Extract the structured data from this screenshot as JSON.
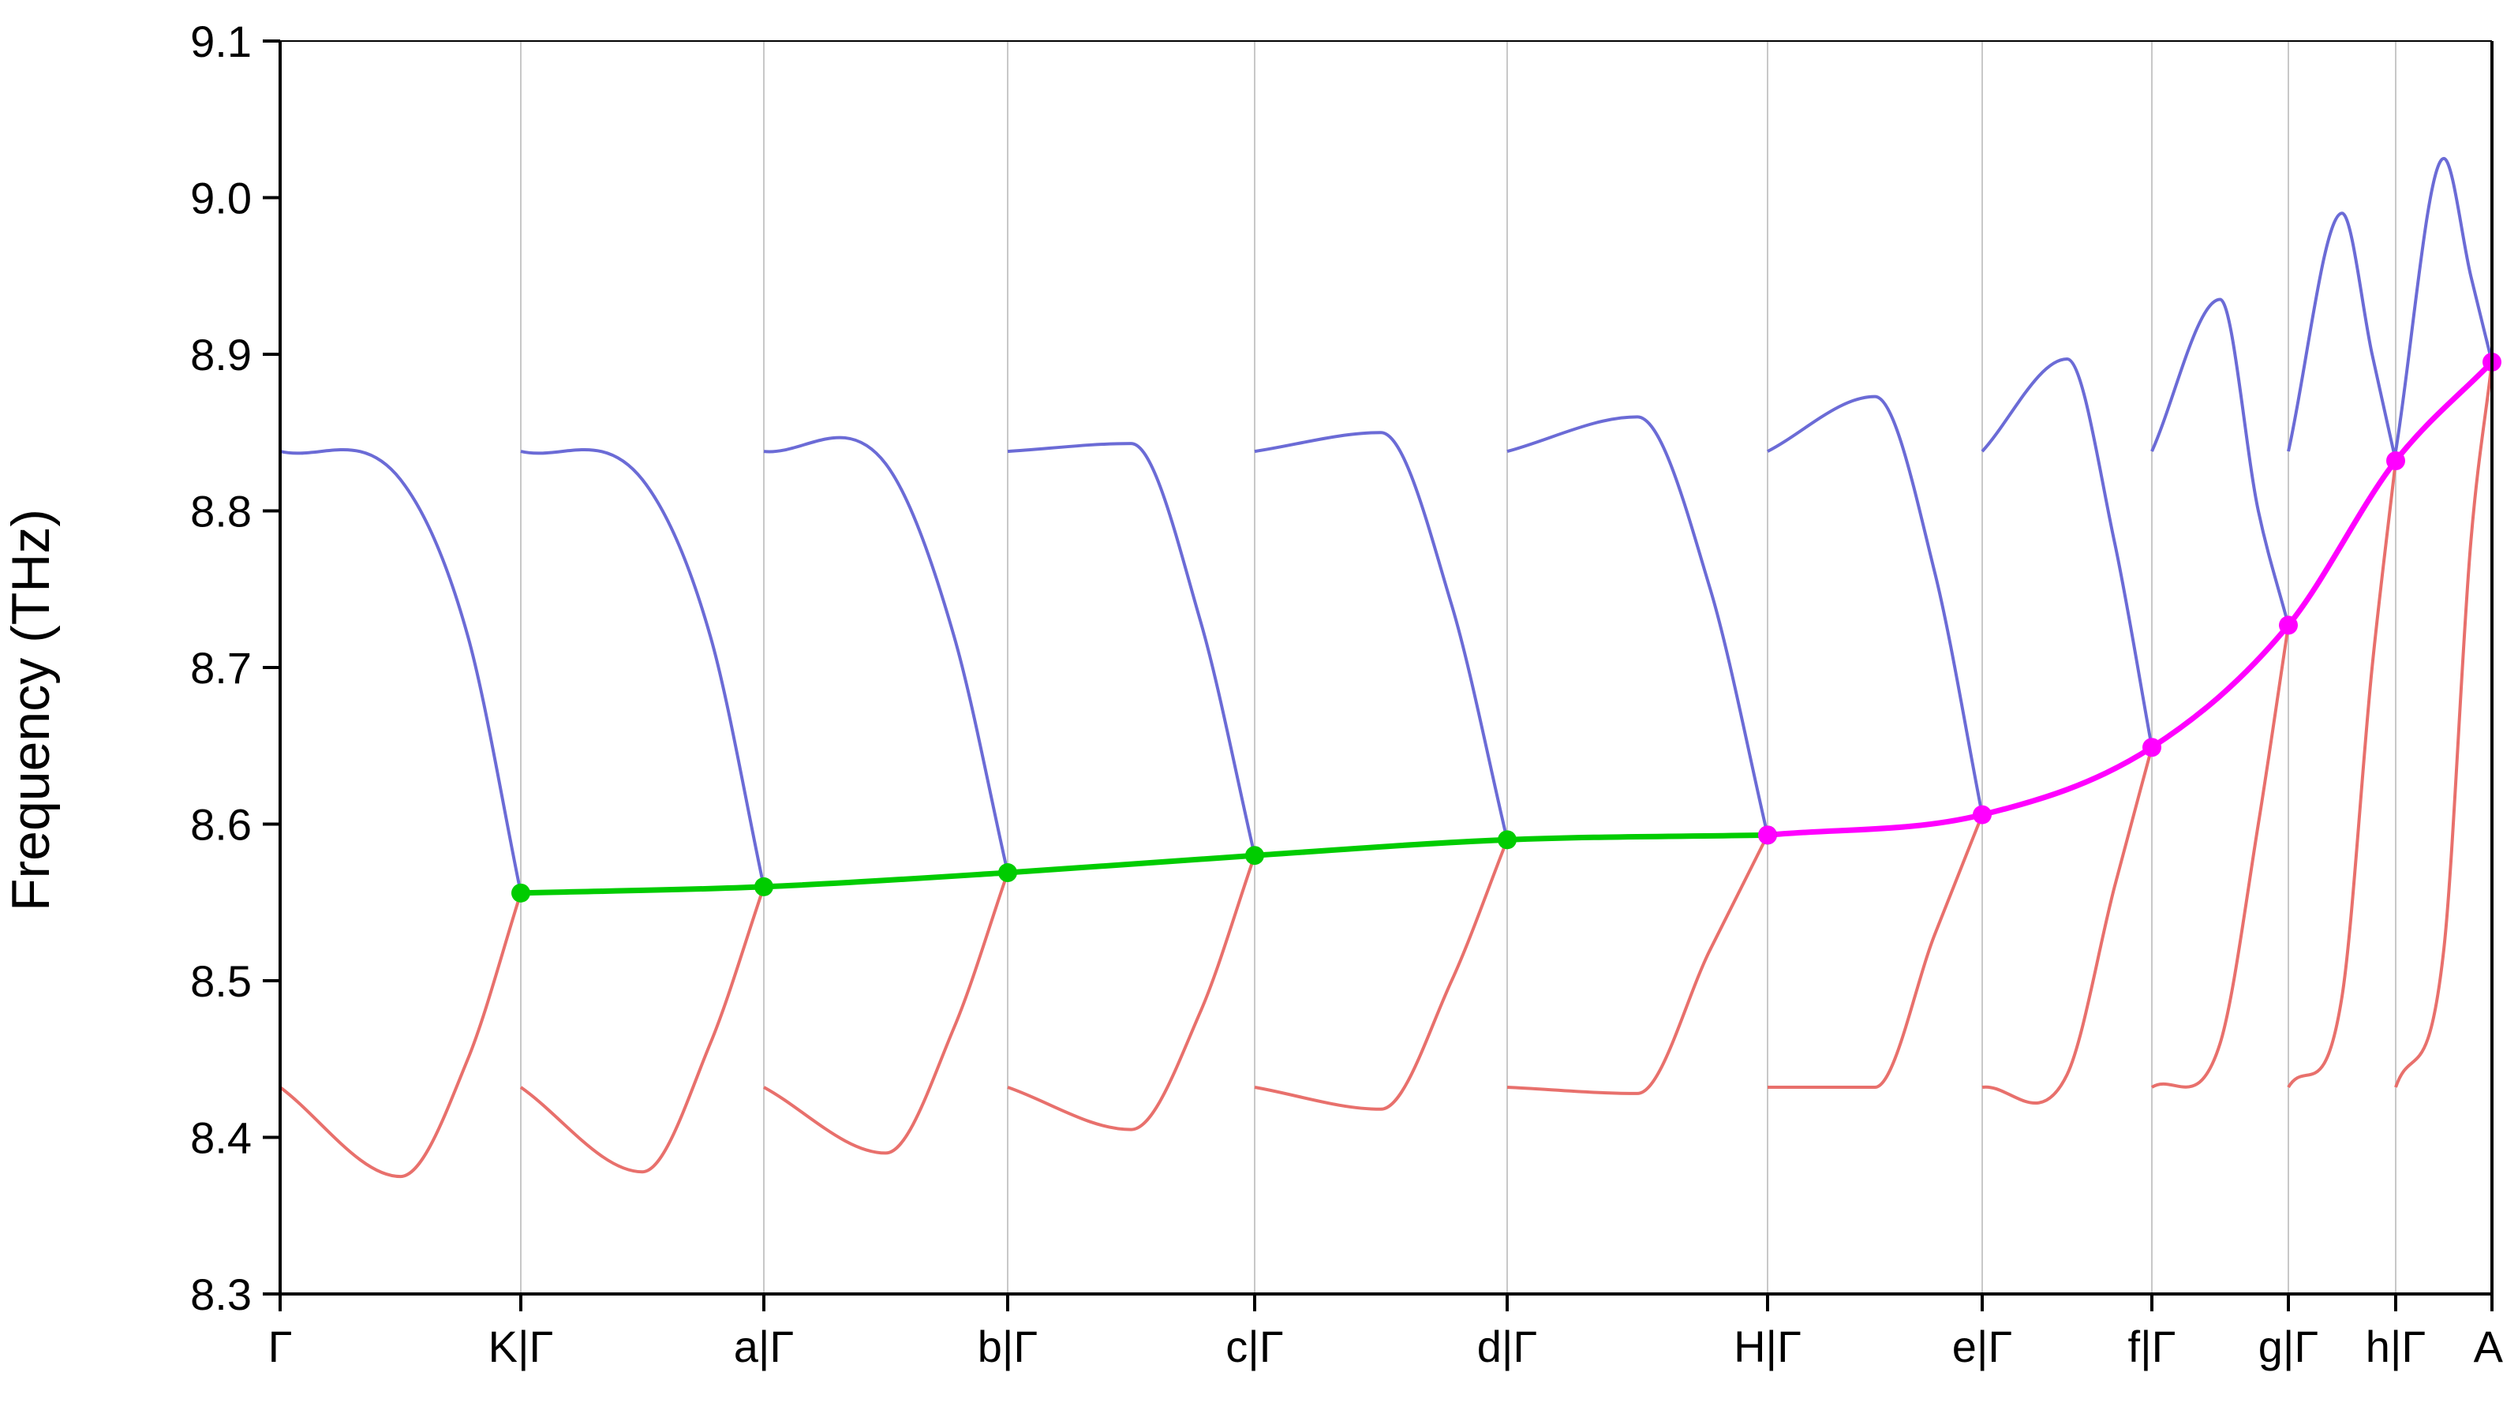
{
  "chart_data": {
    "type": "line",
    "ylabel": "Frequency (THz)",
    "ylim": [
      8.3,
      9.1
    ],
    "yticks": [
      8.3,
      8.4,
      8.5,
      8.6,
      8.7,
      8.8,
      8.9,
      9.0,
      9.1
    ],
    "ytick_labels": [
      "8.3",
      "8.4",
      "8.5",
      "8.6",
      "8.7",
      "8.8",
      "8.9",
      "9.0",
      "9.1"
    ],
    "xticks": [
      "Γ",
      "K|Γ",
      "a|Γ",
      "b|Γ",
      "c|Γ",
      "d|Γ",
      "H|Γ",
      "e|Γ",
      "f|Γ",
      "g|Γ",
      "h|Γ",
      "A"
    ],
    "grid": "vertical lines at path points",
    "colors": {
      "upper_band": "#6b6bd6",
      "lower_band": "#e8706c",
      "green_line": "#00cc00",
      "magenta_line": "#ff00ff",
      "grid": "#c8c8c8",
      "axis": "#000000"
    },
    "segments": [
      {
        "upper": [
          8.838,
          8.82,
          8.72,
          8.556
        ],
        "lower": [
          8.432,
          8.375,
          8.45,
          8.556
        ]
      },
      {
        "upper": [
          8.838,
          8.82,
          8.72,
          8.56
        ],
        "lower": [
          8.432,
          8.378,
          8.46,
          8.56
        ]
      },
      {
        "upper": [
          8.838,
          8.83,
          8.72,
          8.569
        ],
        "lower": [
          8.432,
          8.39,
          8.47,
          8.569
        ]
      },
      {
        "upper": [
          8.838,
          8.843,
          8.73,
          8.58
        ],
        "lower": [
          8.432,
          8.405,
          8.48,
          8.58
        ]
      },
      {
        "upper": [
          8.838,
          8.85,
          8.74,
          8.59
        ],
        "lower": [
          8.432,
          8.418,
          8.5,
          8.59
        ]
      },
      {
        "upper": [
          8.838,
          8.86,
          8.75,
          8.593
        ],
        "lower": [
          8.432,
          8.428,
          8.52,
          8.593
        ]
      },
      {
        "upper": [
          8.838,
          8.873,
          8.76,
          8.606
        ],
        "lower": [
          8.432,
          8.432,
          8.53,
          8.606
        ]
      },
      {
        "upper": [
          8.838,
          8.897,
          8.78,
          8.649
        ],
        "lower": [
          8.432,
          8.44,
          8.56,
          8.649
        ]
      },
      {
        "upper": [
          8.838,
          8.935,
          8.8,
          8.727
        ],
        "lower": [
          8.432,
          8.46,
          8.6,
          8.727
        ]
      },
      {
        "upper": [
          8.838,
          8.99,
          8.9,
          8.832
        ],
        "lower": [
          8.432,
          8.49,
          8.7,
          8.832
        ]
      },
      {
        "upper": [
          8.838,
          9.025,
          8.95,
          8.895
        ],
        "lower": [
          8.432,
          8.52,
          8.78,
          8.895
        ]
      }
    ],
    "green_points": [
      {
        "x": "K|Γ",
        "y": 8.556
      },
      {
        "x": "a|Γ",
        "y": 8.56
      },
      {
        "x": "b|Γ",
        "y": 8.569
      },
      {
        "x": "c|Γ",
        "y": 8.58
      },
      {
        "x": "d|Γ",
        "y": 8.59
      },
      {
        "x": "H|Γ",
        "y": 8.593
      }
    ],
    "magenta_points": [
      {
        "x": "H|Γ",
        "y": 8.593
      },
      {
        "x": "e|Γ",
        "y": 8.606
      },
      {
        "x": "f|Γ",
        "y": 8.649
      },
      {
        "x": "g|Γ",
        "y": 8.727
      },
      {
        "x": "h|Γ",
        "y": 8.832
      },
      {
        "x": "A",
        "y": 8.895
      }
    ]
  }
}
